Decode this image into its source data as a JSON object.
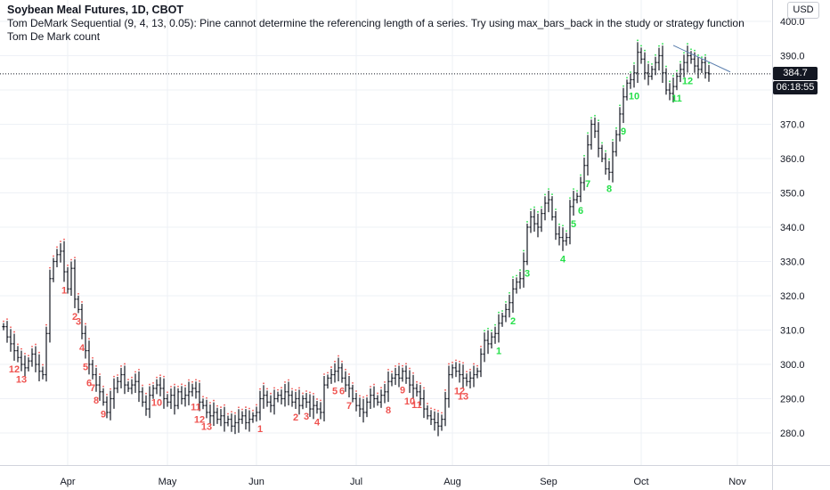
{
  "legend": {
    "title": "Soybean Meal Futures, 1D, CBOT",
    "indicator": "Tom DeMark Sequential (9, 4, 13, 0.05): Pine cannot determine the referencing length of a series. Try using max_bars_back in the study or strategy function",
    "count_label": "Tom De Mark count"
  },
  "currency": "USD",
  "last_price_label": "384.7",
  "countdown_label": "06:18:55",
  "colors": {
    "bar": "#131722",
    "buy_count": "#26e04a",
    "sell_count": "#ef5350",
    "trend_line": "#5b7fae",
    "grid": "#eef1f6"
  },
  "chart_data": {
    "type": "ohlc",
    "title": "Soybean Meal Futures, 1D, CBOT",
    "y_axis": {
      "min": 275,
      "max": 402,
      "ticks": [
        280.0,
        290.0,
        300.0,
        310.0,
        320.0,
        330.0,
        340.0,
        350.0,
        360.0,
        370.0,
        380.0,
        390.0,
        400.0
      ],
      "tick_labels": [
        "280.0",
        "290.0",
        "300.0",
        "310.0",
        "320.0",
        "330.0",
        "340.0",
        "350.0",
        "360.0",
        "370.0",
        "380.0",
        "390.0",
        "400.0"
      ]
    },
    "x_axis": {
      "labels": [
        "Apr",
        "May",
        "Jun",
        "Jul",
        "Aug",
        "Sep",
        "Oct",
        "Nov"
      ],
      "label_bar_index": [
        18,
        46,
        71,
        99,
        126,
        153,
        179,
        206
      ]
    },
    "grid": true,
    "last_price": 384.7,
    "closes": [
      311,
      308,
      306,
      304,
      302,
      300,
      299,
      301,
      303,
      300,
      298,
      297,
      309,
      325,
      330,
      332,
      333,
      327,
      322,
      328,
      319,
      316,
      309,
      304,
      300,
      297,
      294,
      292,
      289,
      286,
      290,
      293,
      295,
      297,
      294,
      293,
      294,
      295,
      292,
      289,
      287,
      291,
      293,
      294,
      293,
      290,
      289,
      291,
      288,
      292,
      290,
      291,
      292,
      293,
      292,
      289,
      288,
      286,
      285,
      286,
      284,
      285,
      283,
      284,
      282,
      283,
      284,
      285,
      283,
      284,
      285,
      286,
      290,
      291,
      289,
      288,
      290,
      291,
      290,
      292,
      291,
      289,
      290,
      288,
      290,
      289,
      287,
      288,
      287,
      286,
      294,
      296,
      297,
      298,
      299,
      296,
      294,
      293,
      290,
      288,
      287,
      286,
      289,
      291,
      290,
      289,
      291,
      292,
      295,
      296,
      297,
      296,
      298,
      296,
      294,
      293,
      292,
      290,
      287,
      285,
      284,
      283,
      282,
      284,
      290,
      297,
      299,
      298,
      297,
      296,
      295,
      296,
      297,
      298,
      303,
      307,
      306,
      308,
      309,
      312,
      314,
      316,
      318,
      322,
      324,
      325,
      330,
      340,
      343,
      341,
      340,
      344,
      347,
      348,
      343,
      338,
      337,
      336,
      337,
      346,
      348,
      349,
      353,
      358,
      364,
      370,
      368,
      363,
      360,
      357,
      356,
      362,
      367,
      373,
      378,
      382,
      383,
      385,
      391,
      389,
      385,
      384,
      386,
      388,
      390,
      385,
      380,
      379,
      381,
      384,
      386,
      388,
      390,
      389,
      387,
      386,
      388,
      385,
      384.7
    ],
    "buy_setup_counts": [
      {
        "bar": 139,
        "label": "1"
      },
      {
        "bar": 143,
        "label": "2"
      },
      {
        "bar": 147,
        "label": "3"
      },
      {
        "bar": 157,
        "label": "4"
      },
      {
        "bar": 160,
        "label": "5"
      },
      {
        "bar": 162,
        "label": "6"
      },
      {
        "bar": 164,
        "label": "7"
      },
      {
        "bar": 170,
        "label": "8"
      },
      {
        "bar": 174,
        "label": "9"
      },
      {
        "bar": 177,
        "label": "10"
      },
      {
        "bar": 189,
        "label": "11"
      },
      {
        "bar": 192,
        "label": "12"
      }
    ],
    "sell_setup_counts": [
      {
        "bar": 3,
        "label": "12"
      },
      {
        "bar": 5,
        "label": "13"
      },
      {
        "bar": 17,
        "label": "1"
      },
      {
        "bar": 20,
        "label": "2"
      },
      {
        "bar": 21,
        "label": "3"
      },
      {
        "bar": 22,
        "label": "4"
      },
      {
        "bar": 23,
        "label": "5"
      },
      {
        "bar": 24,
        "label": "6"
      },
      {
        "bar": 25,
        "label": "7"
      },
      {
        "bar": 26,
        "label": "8"
      },
      {
        "bar": 28,
        "label": "9"
      },
      {
        "bar": 43,
        "label": "10"
      },
      {
        "bar": 54,
        "label": "11"
      },
      {
        "bar": 55,
        "label": "12"
      },
      {
        "bar": 57,
        "label": "13"
      },
      {
        "bar": 72,
        "label": "1"
      },
      {
        "bar": 82,
        "label": "2"
      },
      {
        "bar": 85,
        "label": "3"
      },
      {
        "bar": 88,
        "label": "4"
      },
      {
        "bar": 93,
        "label": "5"
      },
      {
        "bar": 95,
        "label": "6"
      },
      {
        "bar": 97,
        "label": "7"
      },
      {
        "bar": 108,
        "label": "8"
      },
      {
        "bar": 112,
        "label": "9"
      },
      {
        "bar": 114,
        "label": "10"
      },
      {
        "bar": 116,
        "label": "11"
      },
      {
        "bar": 128,
        "label": "12"
      },
      {
        "bar": 129,
        "label": "13"
      }
    ],
    "trend_line": {
      "from_bar": 188,
      "from_price": 393,
      "to_bar": 200,
      "to_price": 385
    }
  }
}
